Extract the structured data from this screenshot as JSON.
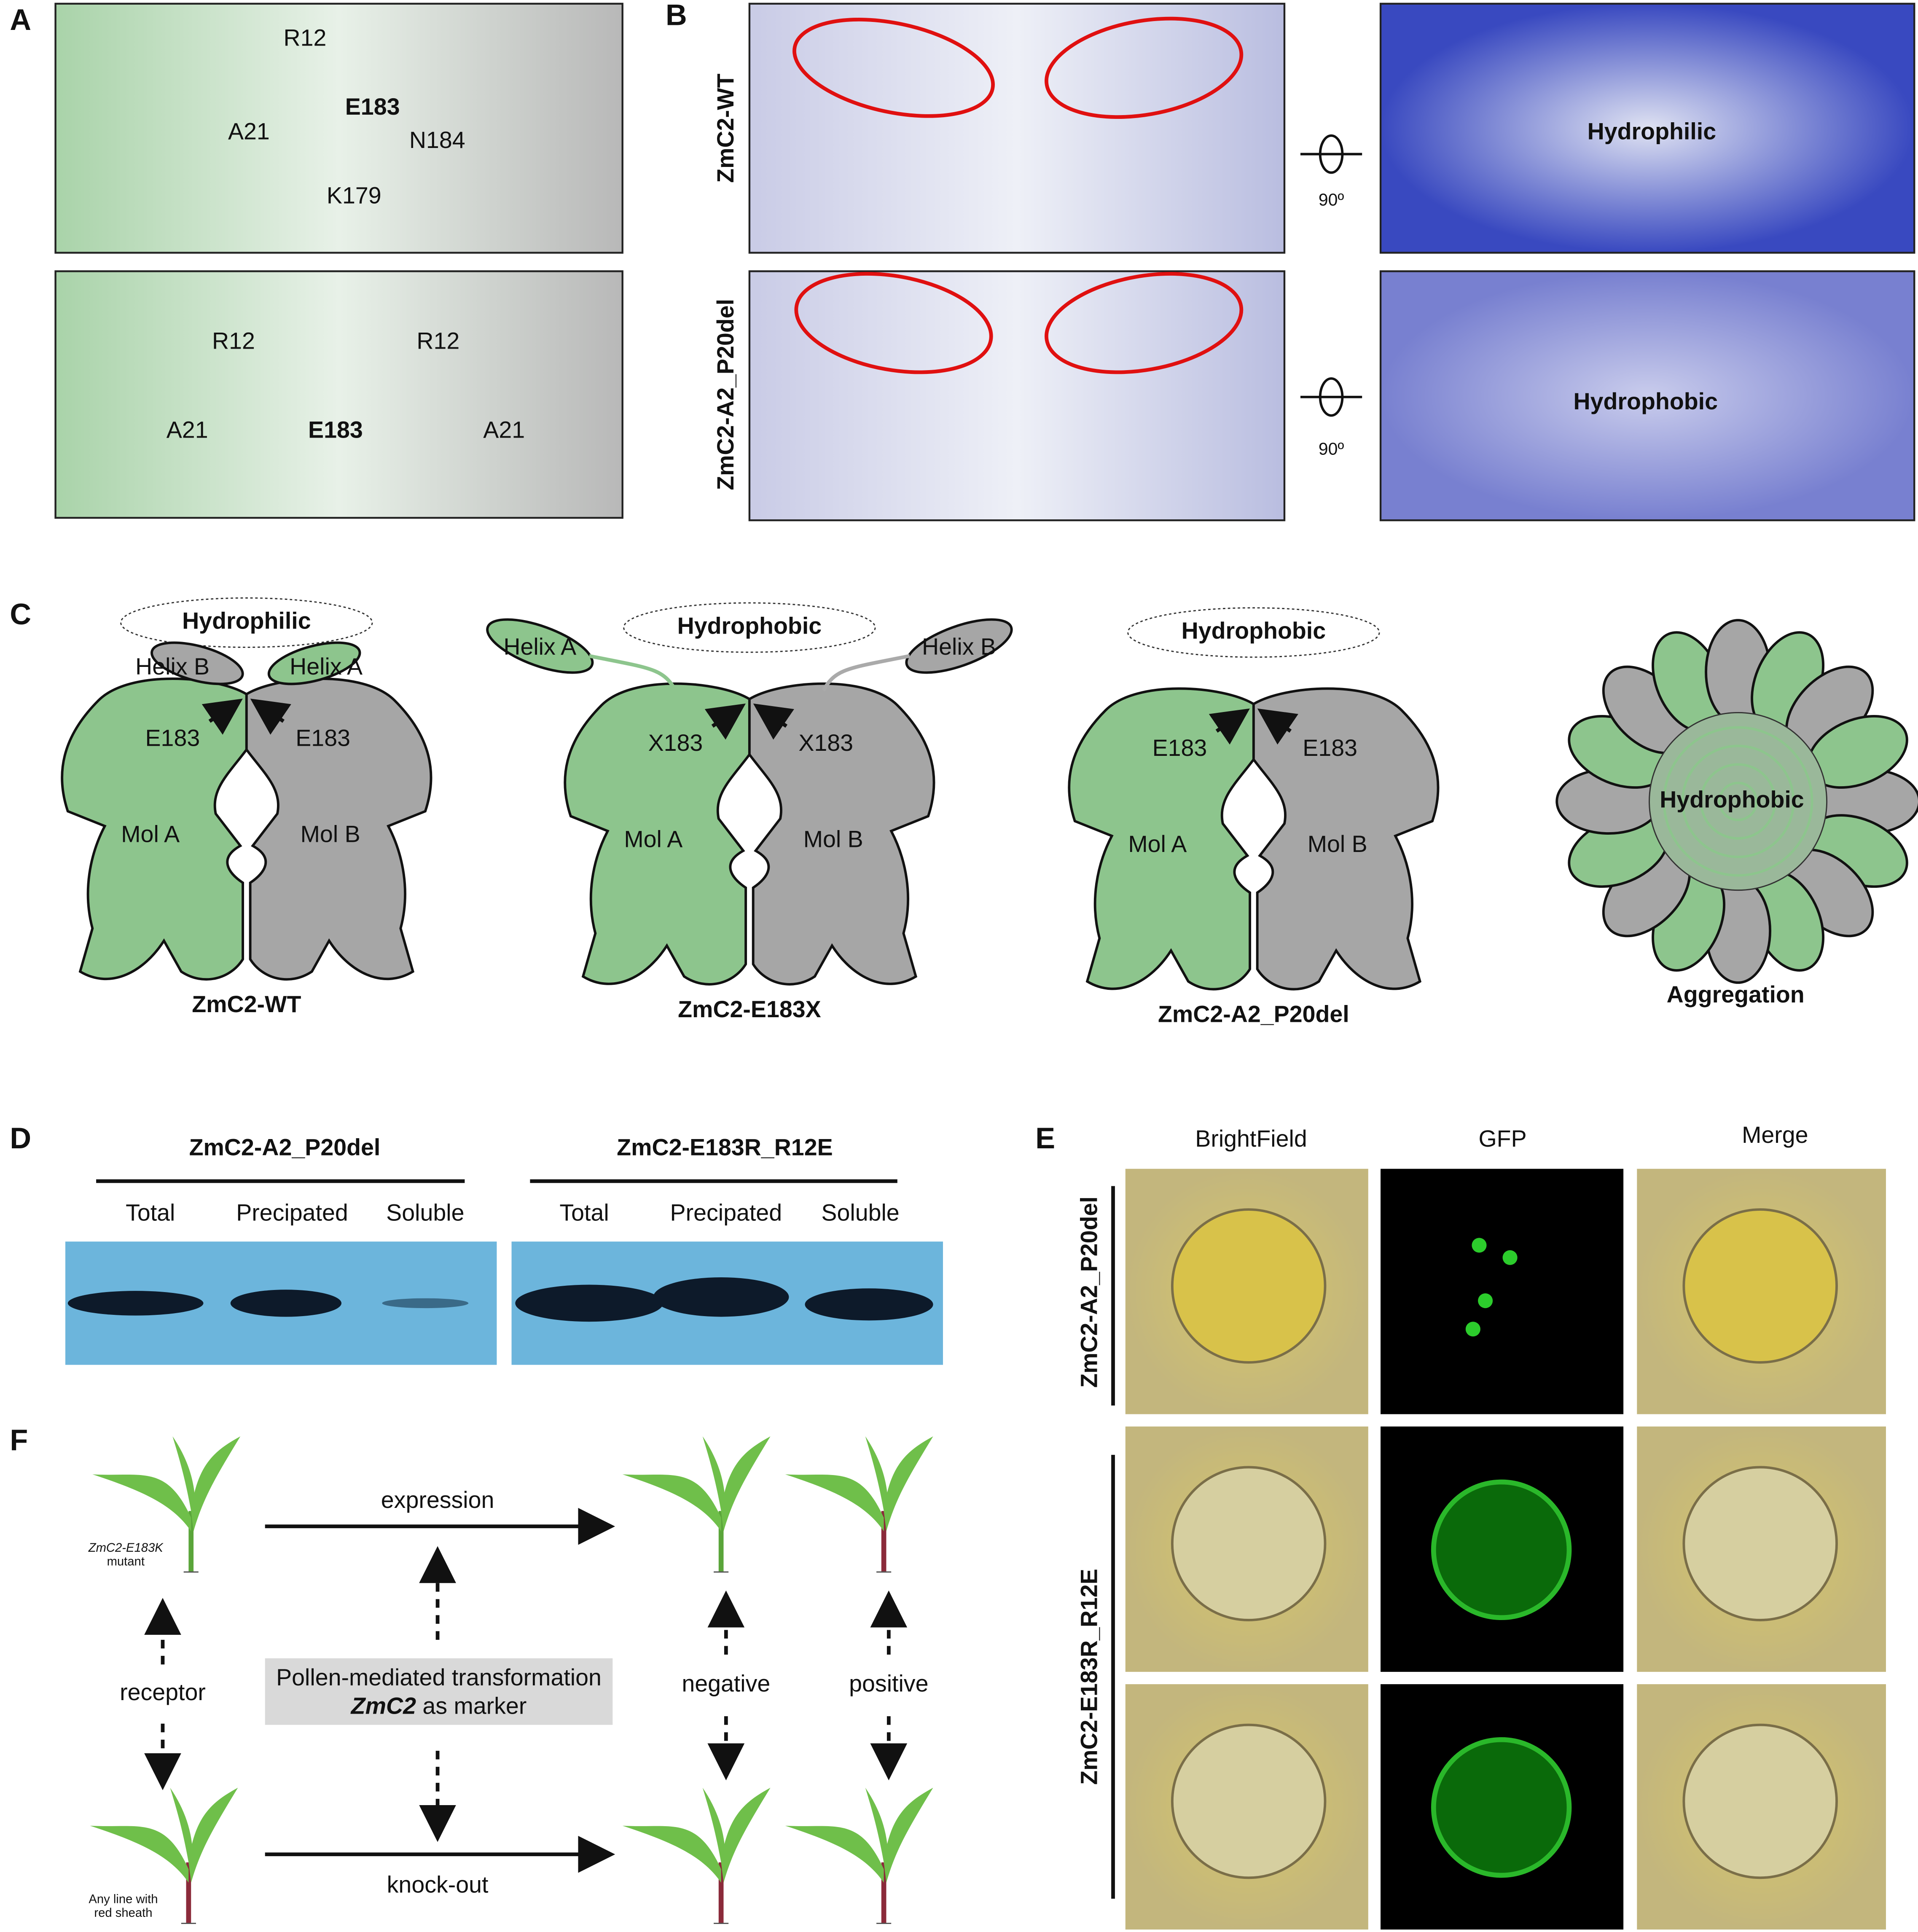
{
  "panels": {
    "A": {
      "label": "A",
      "top_labels": [
        "R12",
        "E183",
        "A21",
        "N184",
        "K179"
      ],
      "bottom_labels": [
        "R12",
        "R12",
        "A21",
        "E183",
        "A21"
      ]
    },
    "B": {
      "label": "B",
      "rows": [
        {
          "name": "ZmC2-WT",
          "surface": "Hydrophilic",
          "rotation": "90º"
        },
        {
          "name": "ZmC2-A2_P20del",
          "surface": "Hydrophobic",
          "rotation": "90º"
        }
      ]
    },
    "C": {
      "label": "C",
      "models": [
        {
          "name": "ZmC2-WT",
          "top": "Hydrophilic",
          "helix_left": "Helix B",
          "helix_right": "Helix A",
          "res_left": "E183",
          "res_right": "E183",
          "mol_left": "Mol A",
          "mol_right": "Mol B"
        },
        {
          "name": "ZmC2-E183X",
          "top": "Hydrophobic",
          "helix_left": "Helix A",
          "helix_right": "Helix B",
          "res_left": "X183",
          "res_right": "X183",
          "mol_left": "Mol A",
          "mol_right": "Mol B"
        },
        {
          "name": "ZmC2-A2_P20del",
          "top": "Hydrophobic",
          "res_left": "E183",
          "res_right": "E183",
          "mol_left": "Mol A",
          "mol_right": "Mol B"
        }
      ],
      "aggregate": {
        "center": "Hydrophobic",
        "name": "Aggregation"
      }
    },
    "D": {
      "label": "D",
      "groups": [
        {
          "name": "ZmC2-A2_P20del",
          "lanes": [
            "Total",
            "Precipated",
            "Soluble"
          ]
        },
        {
          "name": "ZmC2-E183R_R12E",
          "lanes": [
            "Total",
            "Precipated",
            "Soluble"
          ]
        }
      ]
    },
    "E": {
      "label": "E",
      "columns": [
        "BrightField",
        "GFP",
        "Merge"
      ],
      "rows": [
        "ZmC2-A2_P20del",
        "ZmC2-E183R_R12E"
      ]
    },
    "F": {
      "label": "F",
      "top_plant": "ZmC2-E183K",
      "top_plant_sub": "mutant",
      "bottom_plant": "Any line with",
      "bottom_plant_sub": "red sheath",
      "expression": "expression",
      "knockout": "knock-out",
      "receptor": "receptor",
      "box_line1": "Pollen-mediated transformation",
      "box_bold": "ZmC2",
      "box_rest": " as marker",
      "negative": "negative",
      "positive": "positive"
    }
  }
}
